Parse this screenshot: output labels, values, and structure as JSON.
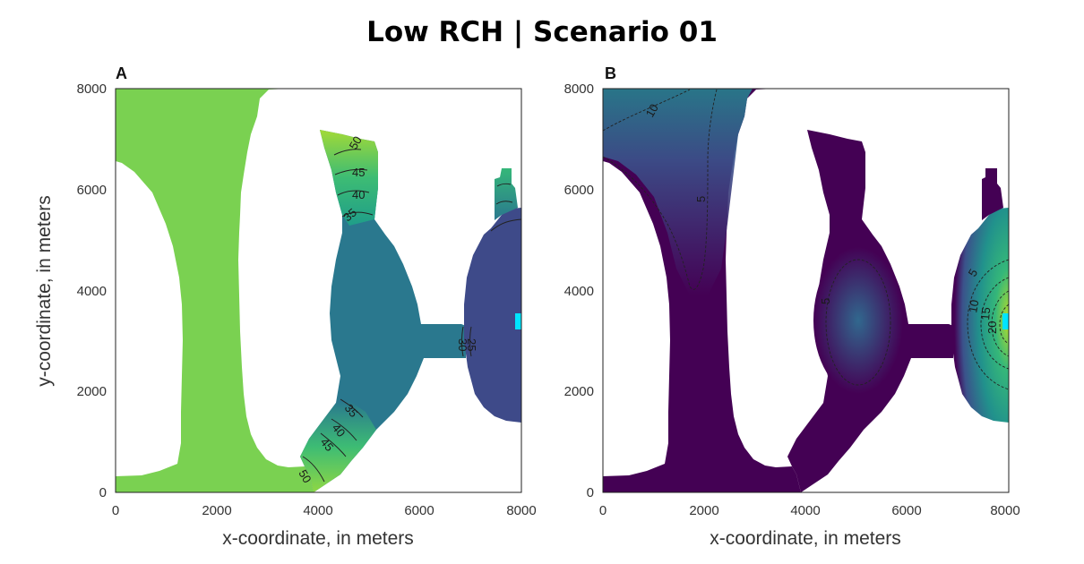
{
  "title": "Low RCH | Scenario 01",
  "chart_data": [
    {
      "type": "heatmap",
      "panel_label": "A",
      "xlabel": "x-coordinate, in meters",
      "ylabel": "y-coordinate, in meters",
      "xlim": [
        0,
        8000
      ],
      "ylim": [
        0,
        8000
      ],
      "xticks": [
        "0",
        "2000",
        "4000",
        "6000",
        "8000"
      ],
      "yticks": [
        "0",
        "2000",
        "4000",
        "6000",
        "8000"
      ],
      "grid": false,
      "contour_labels": [
        {
          "text": "50",
          "x": 3850,
          "y": 7700
        },
        {
          "text": "45",
          "x": 4650,
          "y": 6350
        },
        {
          "text": "40",
          "x": 4580,
          "y": 5950
        },
        {
          "text": "35",
          "x": 4700,
          "y": 5450
        },
        {
          "text": "35",
          "x": 4700,
          "y": 1600
        },
        {
          "text": "40",
          "x": 4500,
          "y": 1300
        },
        {
          "text": "45",
          "x": 4200,
          "y": 1000
        },
        {
          "text": "50",
          "x": 3700,
          "y": 300
        },
        {
          "text": "30",
          "x": 6750,
          "y": 3000
        },
        {
          "text": "25",
          "x": 6950,
          "y": 3000
        }
      ],
      "colors": {
        "west": "#7ad151",
        "north_lobe_top": "#a2da37",
        "center": "#2a788e",
        "east": "#3e4a89",
        "well": "#00e5ff"
      }
    },
    {
      "type": "heatmap",
      "panel_label": "B",
      "xlabel": "x-coordinate, in meters",
      "ylabel": "",
      "xlim": [
        0,
        8000
      ],
      "ylim": [
        0,
        8000
      ],
      "xticks": [
        "0",
        "2000",
        "4000",
        "6000",
        "8000"
      ],
      "yticks": [
        "0",
        "2000",
        "4000",
        "6000",
        "8000"
      ],
      "grid": false,
      "contour_labels": [
        {
          "text": "10",
          "x": 1000,
          "y": 7550
        },
        {
          "text": "5",
          "x": 2000,
          "y": 5700
        },
        {
          "text": "5",
          "x": 4550,
          "y": 3800
        },
        {
          "text": "5",
          "x": 7400,
          "y": 4400
        },
        {
          "text": "10",
          "x": 7550,
          "y": 3700
        },
        {
          "text": "15",
          "x": 7750,
          "y": 3400
        },
        {
          "text": "20",
          "x": 7800,
          "y": 3100
        }
      ],
      "colors": {
        "base": "#440154",
        "mid": "#31688e",
        "high": "#35b779",
        "peak": "#b5de2b",
        "well": "#00e5ff"
      }
    }
  ]
}
